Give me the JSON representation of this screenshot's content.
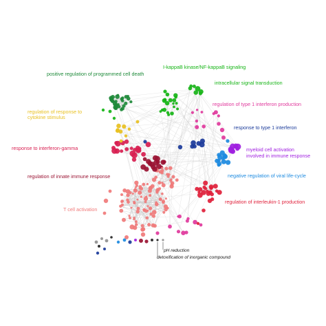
{
  "colors": {
    "programmed_cell_death": "#1e8a3a",
    "ikappab": "#14b414",
    "intracellular_signal": "#18b418",
    "type1_interferon_production": "#e0389c",
    "response_type1_interferon": "#1a3a9a",
    "cytokine_stimulus": "#e8c020",
    "interferon_gamma": "#d81e50",
    "myeloid_activation": "#a020e0",
    "innate_immune": "#9a1232",
    "viral_life_cycle": "#1c8ae0",
    "t_cell_activation": "#f07a7a",
    "interleukin1": "#e0203a",
    "edge": "#c8c8c8",
    "misc_gray": "#909090",
    "misc_black": "#222222"
  },
  "labels": {
    "programmed_cell_death": "positive regulation of programmed cell death",
    "ikappab": "I-kappaB kinase/NF-kappaB signaling",
    "intracellular_signal": "intracellular signal transduction",
    "type1_interferon_production": "regulation of type 1 interferon production",
    "cytokine_stimulus_line1": "regulation of response to",
    "cytokine_stimulus_line2": "cytokine stimulus",
    "response_type1_interferon": "response to type 1 interferon",
    "interferon_gamma": "response to interferon-gamma",
    "myeloid_line1": "myeloid cell activation",
    "myeloid_line2": "involved in immune response",
    "innate_immune": "regulation of innate immune response",
    "viral_life_cycle": "negative regulation of viral life-cycle",
    "interleukin1": "regulation of interleukin-1 production",
    "t_cell_activation": "T cell activation",
    "ph_reduction": "pH reduction",
    "detoxification": "detoxification of inorganic compound"
  }
}
